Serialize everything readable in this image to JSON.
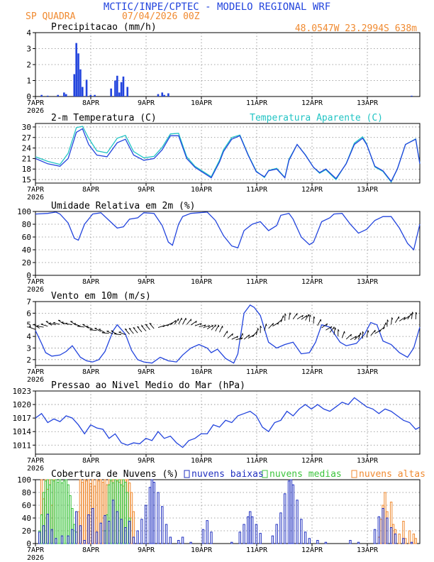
{
  "header": {
    "title": "MCTIC/INPE/CPTEC - MODELO REGIONAL WRF",
    "location": "SP QUADRA",
    "run": "07/04/2026 00Z",
    "coords": "48.0547W  23.2994S  638m"
  },
  "colors": {
    "blue": "#2244dd",
    "cyan": "#22c4c4",
    "orange": "#f08a30",
    "green": "#3cc43c",
    "navy": "#2030c0"
  },
  "x_ticks": [
    "7APR",
    "8APR",
    "9APR",
    "10APR",
    "11APR",
    "12APR",
    "13APR"
  ],
  "year_label": "2026",
  "chart_data": [
    {
      "type": "bar",
      "title": "Precipitacao (mm/h)",
      "ylim": [
        0,
        4
      ],
      "yticks": [
        "0",
        "1",
        "2",
        "3",
        "4"
      ],
      "x_unit": "hours since 07/04/2026 00Z",
      "x": [
        3,
        6,
        11,
        14,
        15,
        19,
        20,
        21,
        22,
        23,
        25,
        27,
        29,
        37,
        39,
        40,
        41,
        42,
        43,
        45,
        60,
        62,
        63,
        65,
        184
      ],
      "values": [
        0.1,
        0.05,
        0.1,
        0.25,
        0.15,
        1.4,
        3.35,
        2.7,
        1.7,
        0.6,
        1.05,
        0.1,
        0.1,
        0.5,
        1.0,
        1.3,
        0.25,
        0.9,
        1.25,
        0.6,
        0.15,
        0.25,
        0.1,
        0.2,
        0.05
      ]
    },
    {
      "type": "line",
      "title": "2-m Temperatura (C)",
      "legend": "Temperatura Aparente (C)",
      "ylim": [
        14,
        31
      ],
      "yticks": [
        "15",
        "18",
        "21",
        "24",
        "27",
        "30"
      ],
      "x_unit": "hours since 07/04/2026 00Z",
      "series": [
        {
          "x": [
            0,
            6,
            12,
            16,
            20,
            23,
            26,
            30,
            35,
            40,
            44,
            48,
            53,
            58,
            62,
            66,
            70,
            74,
            78,
            82,
            86,
            90,
            92,
            96,
            100,
            104,
            108,
            112,
            114,
            118,
            122,
            124,
            128,
            132,
            136,
            139,
            142,
            147,
            152,
            156,
            160,
            162,
            166,
            170,
            174,
            177,
            181,
            186,
            188
          ],
          "values": [
            21,
            19.5,
            18.8,
            21,
            28.5,
            29.5,
            25,
            22,
            21.5,
            25.5,
            26.5,
            22,
            20.5,
            21,
            23.5,
            27.5,
            27.5,
            21,
            18.5,
            17,
            15.5,
            20,
            23,
            26.5,
            27.5,
            22,
            17.2,
            15.8,
            17.5,
            18,
            15.5,
            20.5,
            25,
            22,
            18.5,
            17,
            18,
            15.3,
            19.5,
            25,
            26.8,
            25,
            18.8,
            17.5,
            14.5,
            18,
            25,
            26.5,
            19.5
          ]
        },
        {
          "x": [
            0,
            6,
            12,
            16,
            20,
            23,
            26,
            30,
            35,
            40,
            44,
            48,
            53,
            58,
            62,
            66,
            70,
            74,
            78,
            82,
            86,
            90,
            92,
            96,
            100,
            104,
            108,
            112,
            114,
            118,
            122,
            124,
            128,
            132,
            136,
            139,
            142,
            147,
            152,
            156,
            160,
            162,
            166,
            170,
            174,
            177,
            181,
            186,
            188
          ],
          "values": [
            21.5,
            20.2,
            19.3,
            22.5,
            29.8,
            30.2,
            26.8,
            23.2,
            22.6,
            26.8,
            27.6,
            23,
            21.2,
            21.6,
            24.2,
            28,
            28.2,
            21.5,
            18.8,
            17.3,
            15.8,
            20.5,
            23.5,
            27,
            27.7,
            22.2,
            17.4,
            15.6,
            17.6,
            18.2,
            15.6,
            20.8,
            25,
            22.1,
            18.5,
            16.8,
            17.8,
            15,
            19.6,
            25.4,
            27.2,
            25.2,
            18.6,
            17.3,
            14.3,
            18,
            25,
            26.6,
            19.6
          ]
        }
      ]
    },
    {
      "type": "line",
      "title": "Umidade Relativa em 2m (%)",
      "ylim": [
        0,
        100
      ],
      "yticks": [
        "0",
        "20",
        "40",
        "60",
        "80",
        "100"
      ],
      "x_unit": "hours since 07/04/2026 00Z",
      "x": [
        0,
        6,
        10,
        12,
        16,
        19,
        21,
        24,
        28,
        32,
        36,
        40,
        43,
        46,
        50,
        53,
        58,
        62,
        65,
        67,
        70,
        72,
        76,
        80,
        84,
        88,
        92,
        96,
        99,
        102,
        106,
        110,
        114,
        118,
        120,
        124,
        126,
        130,
        134,
        136,
        140,
        144,
        146,
        150,
        154,
        158,
        162,
        166,
        170,
        174,
        178,
        182,
        185,
        188
      ],
      "values": [
        96,
        97,
        99,
        96,
        82,
        58,
        55,
        80,
        96,
        98,
        86,
        74,
        76,
        88,
        90,
        98,
        97,
        78,
        52,
        47,
        80,
        92,
        97,
        98,
        99,
        86,
        62,
        46,
        43,
        70,
        80,
        84,
        70,
        78,
        94,
        97,
        88,
        60,
        48,
        52,
        84,
        90,
        96,
        97,
        80,
        66,
        72,
        86,
        92,
        92,
        74,
        50,
        40,
        80
      ]
    },
    {
      "type": "line",
      "title": "Vento em 10m (m/s)",
      "ylim": [
        1.5,
        7
      ],
      "yticks": [
        "2",
        "3",
        "4",
        "5",
        "6",
        "7"
      ],
      "x_unit": "hours since 07/04/2026 00Z",
      "x": [
        0,
        3,
        5,
        8,
        12,
        15,
        18,
        22,
        25,
        28,
        31,
        34,
        38,
        40,
        44,
        47,
        50,
        53,
        57,
        61,
        65,
        69,
        72,
        76,
        80,
        84,
        86,
        89,
        93,
        97,
        99,
        102,
        105,
        107,
        110,
        114,
        118,
        122,
        126,
        130,
        134,
        137,
        140,
        144,
        149,
        152,
        157,
        161,
        164,
        167,
        170,
        174,
        178,
        182,
        185,
        188
      ],
      "values": [
        4.5,
        3.4,
        2.6,
        2.3,
        2.4,
        2.7,
        3.2,
        2.2,
        1.9,
        1.8,
        2.0,
        2.7,
        4.5,
        5.0,
        4.2,
        2.8,
        2.0,
        1.8,
        1.7,
        2.2,
        1.9,
        1.8,
        2.4,
        3.0,
        3.3,
        3.0,
        2.6,
        2.9,
        2.1,
        1.7,
        2.5,
        6.0,
        6.7,
        6.5,
        5.8,
        3.5,
        3.0,
        3.3,
        3.5,
        2.5,
        2.6,
        3.5,
        5.0,
        4.8,
        3.5,
        3.2,
        3.4,
        4.2,
        5.2,
        5.0,
        3.6,
        3.3,
        2.6,
        2.2,
        3.0,
        4.8
      ]
    },
    {
      "type": "line",
      "title": "Pressao ao Nivel Medio do Mar (hPa)",
      "ylim": [
        1009,
        1023
      ],
      "yticks": [
        "1011",
        "1014",
        "1017",
        "1020",
        "1023"
      ],
      "x_unit": "hours since 07/04/2026 00Z",
      "x": [
        0,
        3,
        6,
        9,
        12,
        15,
        18,
        21,
        24,
        27,
        30,
        33,
        36,
        39,
        42,
        45,
        48,
        51,
        54,
        57,
        60,
        63,
        66,
        69,
        72,
        75,
        78,
        81,
        84,
        87,
        90,
        93,
        96,
        99,
        102,
        105,
        108,
        111,
        114,
        117,
        120,
        123,
        126,
        129,
        132,
        135,
        138,
        141,
        144,
        147,
        150,
        153,
        156,
        159,
        162,
        165,
        168,
        171,
        174,
        177,
        180,
        183,
        186,
        188
      ],
      "values": [
        1017,
        1018,
        1016,
        1016.8,
        1016.2,
        1017.5,
        1017,
        1015.5,
        1013.5,
        1015.5,
        1014.8,
        1014.5,
        1012.5,
        1013.5,
        1011.5,
        1011,
        1011.5,
        1011.3,
        1012.5,
        1012,
        1014,
        1012.5,
        1013,
        1011.5,
        1010.5,
        1012,
        1012.5,
        1013.5,
        1013.5,
        1015.5,
        1015,
        1016.5,
        1016,
        1017.5,
        1018,
        1018.5,
        1017.5,
        1015,
        1014,
        1016,
        1016.5,
        1018.5,
        1017.5,
        1019,
        1020,
        1019,
        1020,
        1019,
        1018.5,
        1019.5,
        1020.5,
        1020,
        1021.5,
        1020.5,
        1019.5,
        1019,
        1018,
        1019,
        1018.5,
        1017.5,
        1016.5,
        1016,
        1014.5,
        1015
      ]
    },
    {
      "type": "bar",
      "title": "Cobertura de Nuvens (%)",
      "ylim": [
        0,
        100
      ],
      "yticks": [
        "0",
        "20",
        "40",
        "60",
        "80",
        "100"
      ],
      "legend": [
        "nuvens baixas",
        "nuvens medias",
        "nuvens altas"
      ],
      "x_unit": "hours since 07/04/2026 00Z",
      "baixas": [
        [
          2,
          18
        ],
        [
          4,
          28
        ],
        [
          6,
          46
        ],
        [
          8,
          22
        ],
        [
          10,
          8
        ],
        [
          13,
          12
        ],
        [
          16,
          12
        ],
        [
          18,
          22
        ],
        [
          20,
          50
        ],
        [
          22,
          28
        ],
        [
          24,
          5
        ],
        [
          26,
          45
        ],
        [
          28,
          55
        ],
        [
          30,
          18
        ],
        [
          32,
          32
        ],
        [
          34,
          44
        ],
        [
          36,
          35
        ],
        [
          38,
          68
        ],
        [
          40,
          50
        ],
        [
          42,
          38
        ],
        [
          44,
          25
        ],
        [
          46,
          35
        ],
        [
          48,
          10
        ],
        [
          50,
          20
        ],
        [
          52,
          38
        ],
        [
          54,
          60
        ],
        [
          56,
          88
        ],
        [
          57,
          100
        ],
        [
          58,
          96
        ],
        [
          60,
          80
        ],
        [
          62,
          58
        ],
        [
          64,
          30
        ],
        [
          66,
          10
        ],
        [
          70,
          5
        ],
        [
          72,
          10
        ],
        [
          76,
          2
        ],
        [
          82,
          22
        ],
        [
          84,
          36
        ],
        [
          86,
          18
        ],
        [
          96,
          2
        ],
        [
          100,
          18
        ],
        [
          102,
          30
        ],
        [
          104,
          42
        ],
        [
          105,
          50
        ],
        [
          106,
          42
        ],
        [
          108,
          30
        ],
        [
          110,
          16
        ],
        [
          116,
          12
        ],
        [
          118,
          30
        ],
        [
          120,
          48
        ],
        [
          122,
          78
        ],
        [
          124,
          98
        ],
        [
          125,
          100
        ],
        [
          126,
          92
        ],
        [
          128,
          68
        ],
        [
          130,
          38
        ],
        [
          132,
          18
        ],
        [
          134,
          8
        ],
        [
          138,
          5
        ],
        [
          142,
          2
        ],
        [
          154,
          5
        ],
        [
          158,
          2
        ],
        [
          166,
          22
        ],
        [
          168,
          42
        ],
        [
          170,
          55
        ],
        [
          172,
          40
        ],
        [
          174,
          25
        ],
        [
          176,
          15
        ],
        [
          180,
          8
        ],
        [
          184,
          2
        ]
      ],
      "medias": [
        [
          2,
          20
        ],
        [
          3,
          45
        ],
        [
          4,
          80
        ],
        [
          5,
          98
        ],
        [
          6,
          100
        ],
        [
          7,
          92
        ],
        [
          8,
          100
        ],
        [
          9,
          98
        ],
        [
          10,
          100
        ],
        [
          11,
          96
        ],
        [
          12,
          100
        ],
        [
          13,
          95
        ],
        [
          14,
          98
        ],
        [
          15,
          100
        ],
        [
          16,
          92
        ],
        [
          17,
          75
        ],
        [
          18,
          55
        ],
        [
          19,
          30
        ],
        [
          20,
          18
        ],
        [
          34,
          20
        ],
        [
          35,
          45
        ],
        [
          36,
          92
        ],
        [
          37,
          100
        ],
        [
          38,
          95
        ],
        [
          39,
          100
        ],
        [
          40,
          98
        ],
        [
          41,
          100
        ],
        [
          42,
          92
        ],
        [
          43,
          100
        ],
        [
          44,
          96
        ],
        [
          45,
          80
        ],
        [
          46,
          40
        ]
      ],
      "altas": [
        [
          3,
          100
        ],
        [
          4,
          70
        ],
        [
          5,
          100
        ],
        [
          6,
          85
        ],
        [
          7,
          100
        ],
        [
          8,
          60
        ],
        [
          9,
          100
        ],
        [
          21,
          50
        ],
        [
          22,
          100
        ],
        [
          23,
          96
        ],
        [
          24,
          100
        ],
        [
          25,
          98
        ],
        [
          26,
          100
        ],
        [
          27,
          94
        ],
        [
          28,
          100
        ],
        [
          29,
          90
        ],
        [
          30,
          100
        ],
        [
          31,
          98
        ],
        [
          32,
          100
        ],
        [
          33,
          96
        ],
        [
          34,
          100
        ],
        [
          35,
          92
        ],
        [
          36,
          100
        ],
        [
          37,
          98
        ],
        [
          38,
          100
        ],
        [
          39,
          100
        ],
        [
          40,
          100
        ],
        [
          41,
          96
        ],
        [
          42,
          100
        ],
        [
          43,
          90
        ],
        [
          44,
          100
        ],
        [
          45,
          100
        ],
        [
          46,
          95
        ],
        [
          47,
          80
        ],
        [
          48,
          50
        ],
        [
          168,
          10
        ],
        [
          169,
          38
        ],
        [
          170,
          60
        ],
        [
          171,
          80
        ],
        [
          172,
          50
        ],
        [
          174,
          65
        ],
        [
          175,
          30
        ],
        [
          176,
          22
        ],
        [
          178,
          15
        ],
        [
          180,
          35
        ],
        [
          181,
          8
        ],
        [
          183,
          20
        ],
        [
          185,
          15
        ],
        [
          186,
          8
        ]
      ]
    }
  ]
}
